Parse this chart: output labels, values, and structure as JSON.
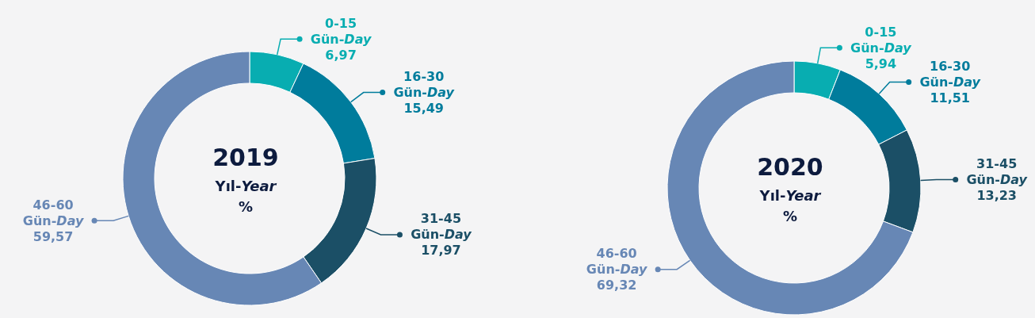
{
  "chart_data": [
    {
      "type": "donut",
      "title": "2019",
      "subtitle": "Yıl-Year",
      "annotations": [
        "%"
      ],
      "categories": [
        "0-15 Gün-Day",
        "16-30 Gün-Day",
        "31-45 Gün-Day",
        "46-60 Gün-Day"
      ],
      "values": [
        6.97,
        15.49,
        17.97,
        59.57
      ],
      "value_labels": [
        "6,97",
        "15,49",
        "17,97",
        "59,57"
      ],
      "colors": [
        "#08adb1",
        "#007c9c",
        "#1b4f66",
        "#6787b5"
      ]
    },
    {
      "type": "donut",
      "title": "2020",
      "subtitle": "Yıl-Year",
      "annotations": [
        "%"
      ],
      "categories": [
        "0-15 Gün-Day",
        "16-30 Gün-Day",
        "31-45 Gün-Day",
        "46-60 Gün-Day"
      ],
      "values": [
        5.94,
        11.51,
        13.23,
        69.32
      ],
      "value_labels": [
        "5,94",
        "11,51",
        "13,23",
        "69,32"
      ],
      "colors": [
        "#08adb1",
        "#007c9c",
        "#1b4f66",
        "#6787b5"
      ]
    }
  ]
}
